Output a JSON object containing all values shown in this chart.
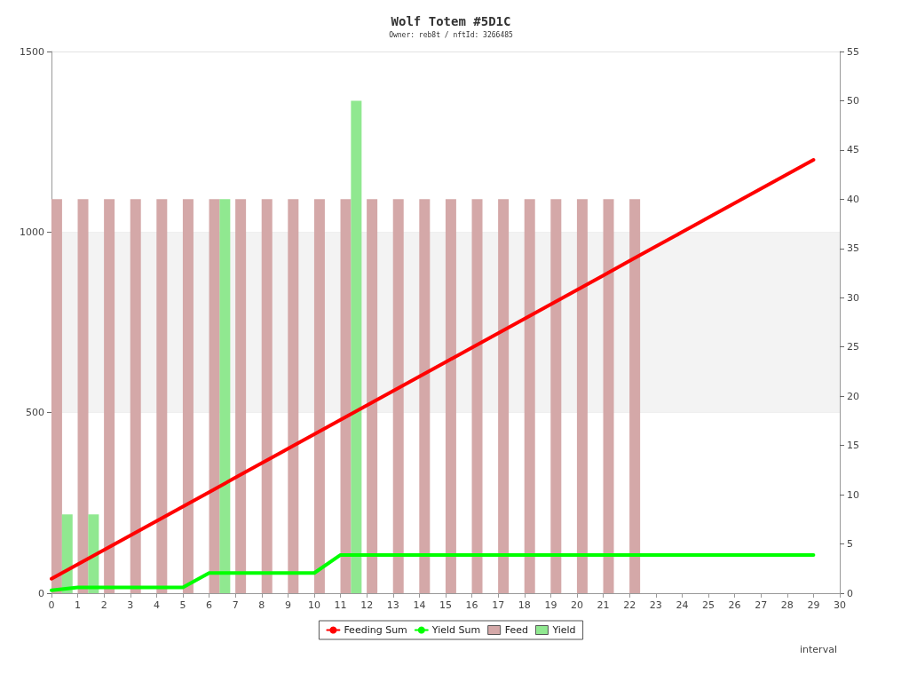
{
  "chart_data": {
    "type": "line",
    "title": "Wolf Totem #5D1C",
    "subtitle": "Owner: reb8t / nftId: 3266485",
    "xlabel": "interval",
    "x": [
      0,
      1,
      2,
      3,
      4,
      5,
      6,
      7,
      8,
      9,
      10,
      11,
      12,
      13,
      14,
      15,
      16,
      17,
      18,
      19,
      20,
      21,
      22,
      23,
      24,
      25,
      26,
      27,
      28,
      29
    ],
    "series": [
      {
        "name": "Feeding Sum",
        "color": "#ff0000",
        "values": [
          40,
          80,
          120,
          160,
          200,
          240,
          280,
          320,
          360,
          400,
          440,
          480,
          520,
          560,
          600,
          640,
          680,
          720,
          760,
          800,
          840,
          880,
          920,
          960,
          1000,
          1040,
          1080,
          1120,
          1160,
          1200
        ]
      },
      {
        "name": "Yield Sum",
        "color": "#00ff00",
        "values": [
          8,
          16,
          16,
          16,
          16,
          16,
          56,
          56,
          56,
          56,
          56,
          106,
          106,
          106,
          106,
          106,
          106,
          106,
          106,
          106,
          106,
          106,
          106,
          106,
          106,
          106,
          106,
          106,
          106,
          106
        ]
      },
      {
        "name": "Feed",
        "type": "bar",
        "axis": "y2",
        "color": "#d4a8a8",
        "x": [
          0.2,
          1.2,
          2.2,
          3.2,
          4.2,
          5.2,
          6.2,
          7.2,
          8.2,
          9.2,
          10.2,
          11.2,
          12.2,
          13.2,
          14.2,
          15.2,
          16.2,
          17.2,
          18.2,
          19.2,
          20.2,
          21.2,
          22.2
        ],
        "values": [
          40,
          40,
          40,
          40,
          40,
          40,
          40,
          40,
          40,
          40,
          40,
          40,
          40,
          40,
          40,
          40,
          40,
          40,
          40,
          40,
          40,
          40,
          40
        ]
      },
      {
        "name": "Yield",
        "type": "bar",
        "axis": "y2",
        "color": "#90e890",
        "x": [
          0.6,
          1.6,
          6.6,
          11.6
        ],
        "values": [
          8,
          8,
          40,
          50
        ]
      }
    ],
    "xlim": [
      0,
      30
    ],
    "xticks": [
      0,
      1,
      2,
      3,
      4,
      5,
      6,
      7,
      8,
      9,
      10,
      11,
      12,
      13,
      14,
      15,
      16,
      17,
      18,
      19,
      20,
      21,
      22,
      23,
      24,
      25,
      26,
      27,
      28,
      29,
      30
    ],
    "ylim": [
      0,
      1500
    ],
    "yticks": [
      0,
      500,
      1000,
      1500
    ],
    "y2lim": [
      0,
      55
    ],
    "y2ticks": [
      0,
      5,
      10,
      15,
      20,
      25,
      30,
      35,
      40,
      45,
      50,
      55
    ],
    "bands": [
      {
        "axis": "y",
        "from": 500,
        "to": 1000,
        "color": "#f3f3f3"
      }
    ],
    "grid": "y",
    "legend": "bottom",
    "marker": "none",
    "line_style": "solid"
  }
}
